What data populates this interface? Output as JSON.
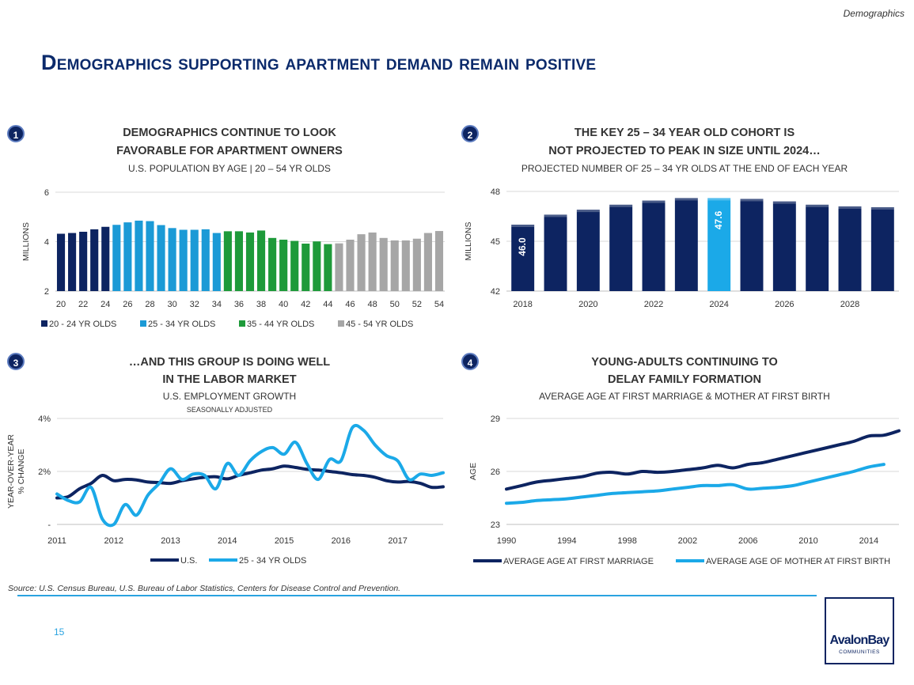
{
  "header": {
    "section_tag": "Demographics",
    "title": "Demographics supporting apartment demand remain positive"
  },
  "panels": [
    {
      "badge": "1",
      "title_line1": "DEMOGRAPHICS CONTINUE TO LOOK",
      "title_line2": "FAVORABLE FOR APARTMENT OWNERS",
      "subtitle": "U.S. POPULATION BY AGE | 20 – 54 YR OLDS"
    },
    {
      "badge": "2",
      "title_line1": "THE KEY 25 – 34 YEAR OLD COHORT IS",
      "title_line2": "NOT PROJECTED TO PEAK IN SIZE UNTIL 2024…",
      "subtitle": "PROJECTED NUMBER OF 25 – 34 YR OLDS AT THE END OF EACH YEAR"
    },
    {
      "badge": "3",
      "title_line1": "…AND THIS GROUP IS DOING WELL",
      "title_line2": "IN THE LABOR MARKET",
      "subtitle": "U.S. EMPLOYMENT GROWTH",
      "subtitle2": "SEASONALLY ADJUSTED"
    },
    {
      "badge": "4",
      "title_line1": "YOUNG-ADULTS CONTINUING TO",
      "title_line2": "DELAY FAMILY FORMATION",
      "subtitle": "AVERAGE AGE AT FIRST MARRIAGE & MOTHER AT FIRST BIRTH"
    }
  ],
  "chart_data": [
    {
      "type": "bar",
      "ylabel": "MILLIONS",
      "ylim": [
        2,
        6
      ],
      "yticks": [
        "2",
        "4",
        "6"
      ],
      "x": [
        20,
        21,
        22,
        23,
        24,
        25,
        26,
        27,
        28,
        29,
        30,
        31,
        32,
        33,
        34,
        35,
        36,
        37,
        38,
        39,
        40,
        41,
        42,
        43,
        44,
        45,
        46,
        47,
        48,
        49,
        50,
        51,
        52,
        53,
        54
      ],
      "xtick_labels": [
        "20",
        "22",
        "24",
        "26",
        "28",
        "30",
        "32",
        "34",
        "36",
        "38",
        "40",
        "42",
        "44",
        "46",
        "48",
        "50",
        "52",
        "54"
      ],
      "values": [
        4.32,
        4.35,
        4.4,
        4.5,
        4.6,
        4.68,
        4.78,
        4.85,
        4.83,
        4.67,
        4.55,
        4.48,
        4.48,
        4.5,
        4.35,
        4.42,
        4.42,
        4.37,
        4.45,
        4.15,
        4.08,
        4.03,
        3.92,
        4.01,
        3.9,
        3.93,
        4.08,
        4.3,
        4.37,
        4.15,
        4.05,
        4.05,
        4.12,
        4.35,
        4.43
      ],
      "series": [
        {
          "name": "20 - 24 YR OLDS",
          "from": 20,
          "to": 24,
          "color": "#0d2461"
        },
        {
          "name": "25 - 34 YR OLDS",
          "from": 25,
          "to": 34,
          "color": "#1b9ad6"
        },
        {
          "name": "35 - 44 YR OLDS",
          "from": 35,
          "to": 44,
          "color": "#1e9a3a"
        },
        {
          "name": "45 - 54 YR OLDS",
          "from": 45,
          "to": 54,
          "color": "#a6a6a6"
        }
      ],
      "grid": true,
      "legend": "bottom"
    },
    {
      "type": "bar",
      "ylabel": "MILLIONS",
      "ylim": [
        42,
        48
      ],
      "yticks": [
        "42",
        "45",
        "48"
      ],
      "categories": [
        "2018",
        "2019",
        "2020",
        "2021",
        "2022",
        "2023",
        "2024",
        "2025",
        "2026",
        "2027",
        "2028",
        "2029"
      ],
      "xtick_labels": [
        "2018",
        "2020",
        "2022",
        "2024",
        "2026",
        "2028"
      ],
      "values": [
        46.0,
        46.6,
        46.9,
        47.2,
        47.45,
        47.6,
        47.6,
        47.55,
        47.4,
        47.2,
        47.1,
        47.05
      ],
      "data_labels": {
        "2018": "46.0",
        "2024": "47.6"
      },
      "colors": {
        "default": "#0d2461",
        "highlight": "#1ba9e8"
      },
      "highlight": "2024",
      "grid": true
    },
    {
      "type": "line",
      "ylabel_line1": "YEAR-OVER-YEAR",
      "ylabel_line2": "% CHANGE",
      "ylim": [
        0,
        4
      ],
      "yticks": [
        "-",
        "2%",
        "4%"
      ],
      "xlim": [
        2011,
        2017.8
      ],
      "xtick_labels": [
        "2011",
        "2012",
        "2013",
        "2014",
        "2015",
        "2016",
        "2017"
      ],
      "series": [
        {
          "name": "U.S.",
          "color": "#0d2461",
          "x": [
            2011.0,
            2011.2,
            2011.4,
            2011.6,
            2011.8,
            2012.0,
            2012.2,
            2012.4,
            2012.6,
            2012.8,
            2013.0,
            2013.2,
            2013.4,
            2013.6,
            2013.8,
            2014.0,
            2014.2,
            2014.4,
            2014.6,
            2014.8,
            2015.0,
            2015.2,
            2015.4,
            2015.6,
            2015.8,
            2016.0,
            2016.2,
            2016.4,
            2016.6,
            2016.8,
            2017.0,
            2017.2,
            2017.4,
            2017.6,
            2017.8
          ],
          "y": [
            1.0,
            1.05,
            1.35,
            1.55,
            1.85,
            1.65,
            1.7,
            1.68,
            1.6,
            1.58,
            1.55,
            1.65,
            1.72,
            1.78,
            1.8,
            1.72,
            1.85,
            1.95,
            2.05,
            2.1,
            2.2,
            2.15,
            2.08,
            2.05,
            2.0,
            1.95,
            1.88,
            1.85,
            1.78,
            1.65,
            1.6,
            1.62,
            1.55,
            1.4,
            1.42
          ]
        },
        {
          "name": "25 - 34 YR OLDS",
          "color": "#1ba9e8",
          "x": [
            2011.0,
            2011.2,
            2011.4,
            2011.6,
            2011.8,
            2012.0,
            2012.2,
            2012.4,
            2012.6,
            2012.8,
            2013.0,
            2013.2,
            2013.4,
            2013.6,
            2013.8,
            2014.0,
            2014.2,
            2014.4,
            2014.6,
            2014.8,
            2015.0,
            2015.2,
            2015.4,
            2015.6,
            2015.8,
            2016.0,
            2016.2,
            2016.4,
            2016.6,
            2016.8,
            2017.0,
            2017.2,
            2017.4,
            2017.6,
            2017.8
          ],
          "y": [
            1.15,
            0.9,
            0.85,
            1.4,
            0.2,
            0.0,
            0.75,
            0.35,
            1.1,
            1.55,
            2.1,
            1.7,
            1.9,
            1.85,
            1.35,
            2.3,
            1.85,
            2.4,
            2.75,
            2.9,
            2.65,
            3.1,
            2.3,
            1.7,
            2.45,
            2.4,
            3.65,
            3.55,
            3.0,
            2.6,
            2.4,
            1.7,
            1.9,
            1.85,
            1.95
          ]
        }
      ],
      "grid": true,
      "legend": "bottom"
    },
    {
      "type": "line",
      "ylabel": "AGE",
      "ylim": [
        23,
        29
      ],
      "yticks": [
        "23",
        "26",
        "29"
      ],
      "xlim": [
        1990,
        2016
      ],
      "xtick_labels": [
        "1990",
        "1994",
        "1998",
        "2002",
        "2006",
        "2010",
        "2014"
      ],
      "series": [
        {
          "name": "AVERAGE AGE AT FIRST MARRIAGE",
          "color": "#0d2461",
          "x": [
            1990,
            1991,
            1992,
            1993,
            1994,
            1995,
            1996,
            1997,
            1998,
            1999,
            2000,
            2001,
            2002,
            2003,
            2004,
            2005,
            2006,
            2007,
            2008,
            2009,
            2010,
            2011,
            2012,
            2013,
            2014,
            2015,
            2016
          ],
          "y": [
            25.0,
            25.2,
            25.4,
            25.5,
            25.6,
            25.7,
            25.9,
            25.95,
            25.85,
            26.0,
            25.95,
            26.0,
            26.1,
            26.2,
            26.35,
            26.2,
            26.4,
            26.5,
            26.7,
            26.9,
            27.1,
            27.3,
            27.5,
            27.7,
            28.0,
            28.05,
            28.3
          ]
        },
        {
          "name": "AVERAGE AGE OF MOTHER AT FIRST BIRTH",
          "color": "#1ba9e8",
          "x": [
            1990,
            1991,
            1992,
            1993,
            1994,
            1995,
            1996,
            1997,
            1998,
            1999,
            2000,
            2001,
            2002,
            2003,
            2004,
            2005,
            2006,
            2007,
            2008,
            2009,
            2010,
            2011,
            2012,
            2013,
            2014,
            2015
          ],
          "y": [
            24.2,
            24.25,
            24.35,
            24.4,
            24.45,
            24.55,
            24.65,
            24.75,
            24.8,
            24.85,
            24.9,
            25.0,
            25.1,
            25.2,
            25.2,
            25.25,
            25.0,
            25.05,
            25.1,
            25.2,
            25.4,
            25.6,
            25.8,
            26.0,
            26.25,
            26.4
          ]
        }
      ],
      "grid": true,
      "legend": "bottom"
    }
  ],
  "footer": {
    "source": "Source:  U.S. Census Bureau, U.S. Bureau of Labor Statistics, Centers for Disease Control and Prevention.",
    "page_number": "15",
    "logo_name": "AvalonBay",
    "logo_sub": "COMMUNITIES"
  }
}
